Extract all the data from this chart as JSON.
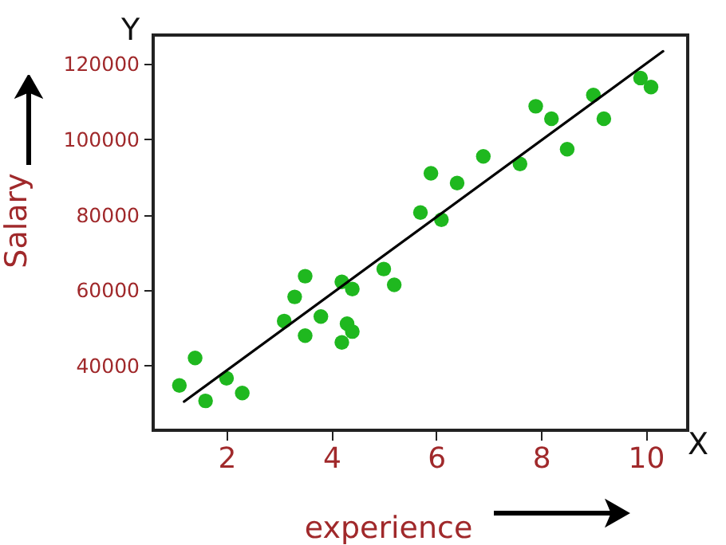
{
  "chart_data": {
    "type": "scatter",
    "xlabel": "experience",
    "ylabel": "Salary",
    "annotations": [
      "Y",
      "X"
    ],
    "xlim": [
      0.6,
      10.8
    ],
    "ylim": [
      22800,
      127700
    ],
    "xticks": [
      2,
      4,
      6,
      8,
      10
    ],
    "yticks": [
      40000,
      60000,
      80000,
      100000,
      120000
    ],
    "grid": false,
    "marker": "circle",
    "series": [
      {
        "color": "#1fb81f",
        "x": [
          1.1,
          1.4,
          1.6,
          2.0,
          2.3,
          3.1,
          3.3,
          3.5,
          3.5,
          3.8,
          4.2,
          4.3,
          4.2,
          4.4,
          4.4,
          5.0,
          5.2,
          5.7,
          5.9,
          6.1,
          6.4,
          6.9,
          7.6,
          7.9,
          8.2,
          8.5,
          9.0,
          9.2,
          9.9,
          10.1
        ],
        "values": [
          34700,
          42000,
          30600,
          36600,
          32700,
          51800,
          58200,
          63700,
          47900,
          53000,
          62200,
          51100,
          46100,
          60300,
          49000,
          65600,
          61400,
          80600,
          91000,
          78700,
          88400,
          95500,
          93500,
          108800,
          105500,
          97400,
          111800,
          105500,
          116300,
          113900
        ]
      },
      {
        "type": "line",
        "color": "#000000",
        "line_style": "solid",
        "marker": "none",
        "x": [
          1.19,
          10.33
        ],
        "values": [
          30400,
          123400
        ]
      }
    ]
  }
}
